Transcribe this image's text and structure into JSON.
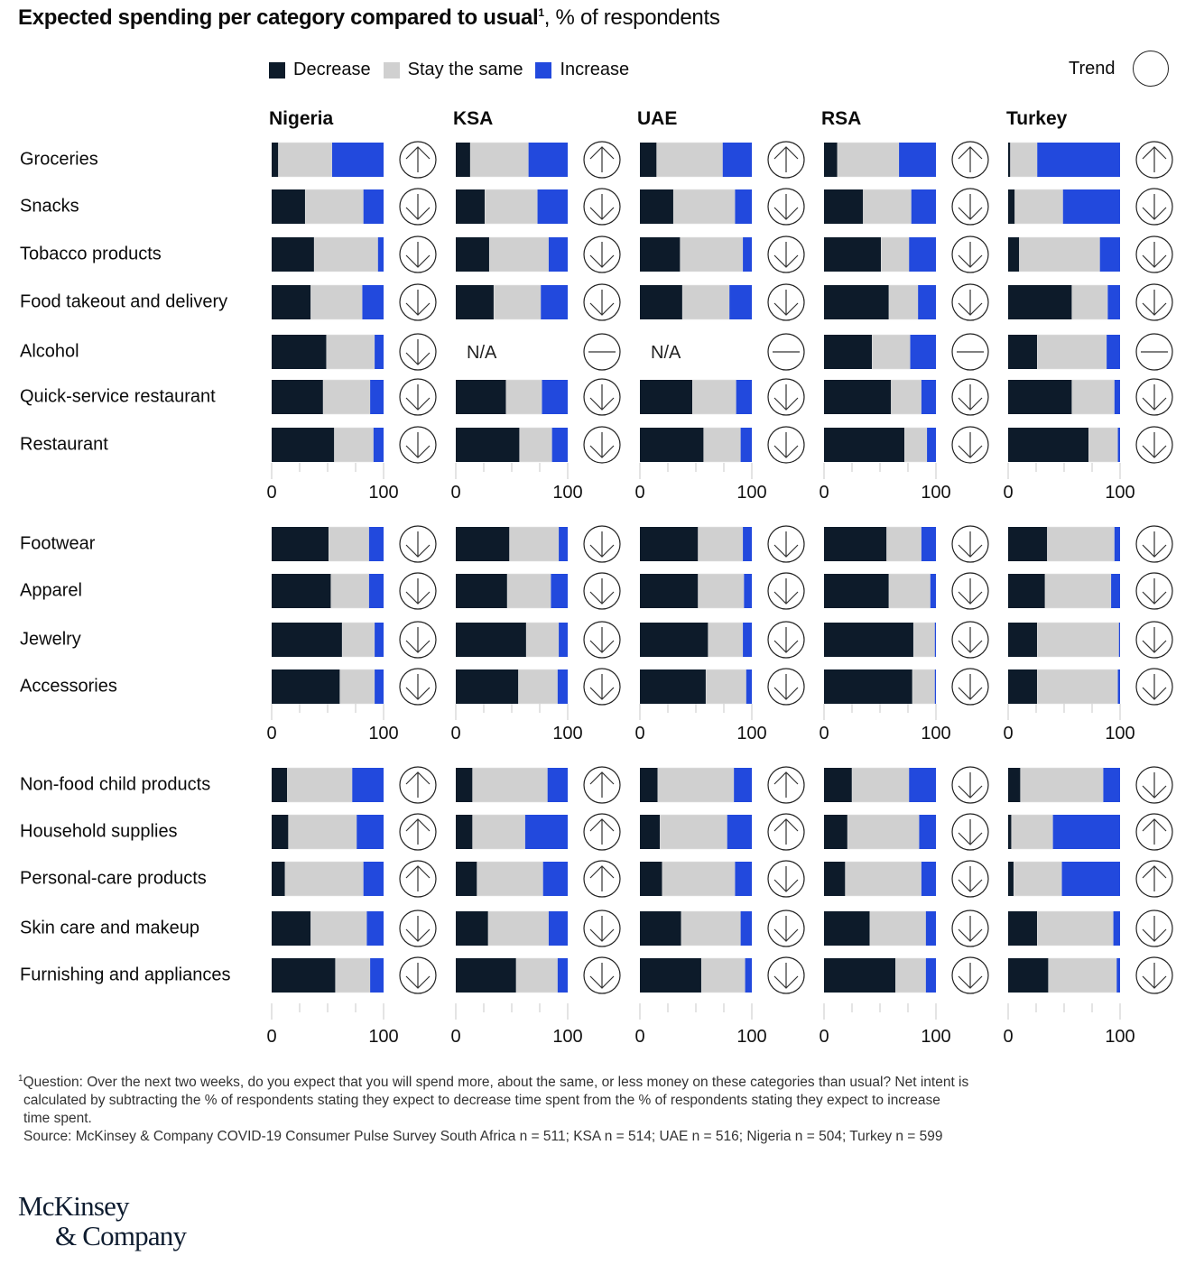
{
  "header": {
    "title_bold": "Expected spending per category compared to usual",
    "title_sup": "1",
    "title_rest": ", % of respondents"
  },
  "legend": {
    "items": [
      {
        "label": "Decrease",
        "color": "#0d1b2a"
      },
      {
        "label": "Stay the same",
        "color": "#d0d0d0"
      },
      {
        "label": "Increase",
        "color": "#2249dd"
      }
    ],
    "trend_label": "Trend"
  },
  "footnote": {
    "line1": "Question: Over the next two weeks, do you expect that you will spend more, about the same, or less money on these categories than usual? Net intent is",
    "line2": "calculated by subtracting the % of respondents stating they expect to decrease time spent from the % of respondents stating they expect to increase",
    "line3": "time spent.",
    "source": "Source: McKinsey & Company COVID-19 Consumer Pulse Survey South Africa n = 511; KSA n = 514; UAE n = 516; Nigeria n = 504; Turkey n = 599",
    "marker": "1"
  },
  "logo": {
    "line1": "McKinsey",
    "line2": "& Company"
  },
  "chart_data": {
    "type": "bar",
    "subtype": "stacked-horizontal-small-multiples",
    "title": "Expected spending per category compared to usual, % of respondents",
    "xlabel": "",
    "ylabel": "",
    "xlim": [
      0,
      100
    ],
    "x_ticks": [
      0,
      25,
      50,
      75,
      100
    ],
    "x_tick_labels": [
      "0",
      "100"
    ],
    "legend_position": "top",
    "na_label": "N/A",
    "series_names": [
      "Decrease",
      "Stay the same",
      "Increase"
    ],
    "trend_values": [
      "up",
      "down",
      "flat"
    ],
    "countries": [
      "Nigeria",
      "KSA",
      "UAE",
      "RSA",
      "Turkey"
    ],
    "groups": [
      {
        "categories": [
          "Groceries",
          "Snacks",
          "Tobacco products",
          "Food takeout and delivery",
          "Alcohol",
          "Quick-service restaurant",
          "Restaurant"
        ],
        "data": {
          "Nigeria": [
            [
              6,
              48,
              46,
              "up"
            ],
            [
              30,
              52,
              18,
              "down"
            ],
            [
              38,
              57,
              5,
              "down"
            ],
            [
              35,
              46,
              19,
              "down"
            ],
            [
              49,
              43,
              8,
              "down"
            ],
            [
              46,
              42,
              12,
              "down"
            ],
            [
              56,
              35,
              9,
              "down"
            ]
          ],
          "KSA": [
            [
              13,
              52,
              35,
              "up"
            ],
            [
              26,
              47,
              27,
              "down"
            ],
            [
              30,
              53,
              17,
              "down"
            ],
            [
              34,
              42,
              24,
              "down"
            ],
            [
              null,
              null,
              null,
              "flat"
            ],
            [
              45,
              32,
              23,
              "down"
            ],
            [
              57,
              29,
              14,
              "down"
            ]
          ],
          "UAE": [
            [
              15,
              59,
              26,
              "up"
            ],
            [
              30,
              55,
              15,
              "down"
            ],
            [
              36,
              56,
              8,
              "down"
            ],
            [
              38,
              42,
              20,
              "down"
            ],
            [
              null,
              null,
              null,
              "flat"
            ],
            [
              47,
              39,
              14,
              "down"
            ],
            [
              57,
              33,
              10,
              "down"
            ]
          ],
          "RSA": [
            [
              12,
              55,
              33,
              "up"
            ],
            [
              35,
              43,
              22,
              "down"
            ],
            [
              51,
              25,
              24,
              "down"
            ],
            [
              58,
              26,
              16,
              "down"
            ],
            [
              43,
              34,
              23,
              "flat"
            ],
            [
              60,
              27,
              13,
              "down"
            ],
            [
              72,
              20,
              8,
              "down"
            ]
          ],
          "Turkey": [
            [
              2,
              24,
              74,
              "up"
            ],
            [
              6,
              43,
              51,
              "down"
            ],
            [
              10,
              72,
              18,
              "down"
            ],
            [
              57,
              32,
              11,
              "down"
            ],
            [
              26,
              62,
              12,
              "flat"
            ],
            [
              57,
              38,
              5,
              "down"
            ],
            [
              72,
              26,
              2,
              "down"
            ]
          ]
        }
      },
      {
        "categories": [
          "Footwear",
          "Apparel",
          "Jewelry",
          "Accessories"
        ],
        "data": {
          "Nigeria": [
            [
              51,
              36,
              13,
              "down"
            ],
            [
              53,
              34,
              13,
              "down"
            ],
            [
              63,
              29,
              8,
              "down"
            ],
            [
              61,
              31,
              8,
              "down"
            ]
          ],
          "KSA": [
            [
              48,
              44,
              8,
              "down"
            ],
            [
              46,
              39,
              15,
              "down"
            ],
            [
              63,
              29,
              8,
              "down"
            ],
            [
              56,
              35,
              9,
              "down"
            ]
          ],
          "UAE": [
            [
              52,
              40,
              8,
              "down"
            ],
            [
              52,
              41,
              7,
              "down"
            ],
            [
              61,
              31,
              8,
              "down"
            ],
            [
              59,
              36,
              5,
              "down"
            ]
          ],
          "RSA": [
            [
              56,
              31,
              13,
              "down"
            ],
            [
              58,
              37,
              5,
              "down"
            ],
            [
              80,
              19,
              1,
              "down"
            ],
            [
              79,
              20,
              1,
              "down"
            ]
          ],
          "Turkey": [
            [
              35,
              60,
              5,
              "down"
            ],
            [
              33,
              59,
              8,
              "down"
            ],
            [
              26,
              73,
              1,
              "down"
            ],
            [
              26,
              72,
              2,
              "down"
            ]
          ]
        }
      },
      {
        "categories": [
          "Non-food child products",
          "Household supplies",
          "Personal-care products",
          "Skin care and makeup",
          "Furnishing and appliances"
        ],
        "data": {
          "Nigeria": [
            [
              14,
              58,
              28,
              "up"
            ],
            [
              15,
              61,
              24,
              "up"
            ],
            [
              12,
              70,
              18,
              "up"
            ],
            [
              35,
              50,
              15,
              "down"
            ],
            [
              57,
              31,
              12,
              "down"
            ]
          ],
          "KSA": [
            [
              15,
              67,
              18,
              "up"
            ],
            [
              15,
              47,
              38,
              "up"
            ],
            [
              19,
              59,
              22,
              "up"
            ],
            [
              29,
              54,
              17,
              "down"
            ],
            [
              54,
              37,
              9,
              "down"
            ]
          ],
          "UAE": [
            [
              16,
              68,
              16,
              "up"
            ],
            [
              18,
              60,
              22,
              "up"
            ],
            [
              20,
              65,
              15,
              "down"
            ],
            [
              37,
              53,
              10,
              "down"
            ],
            [
              55,
              39,
              6,
              "down"
            ]
          ],
          "RSA": [
            [
              25,
              51,
              24,
              "down"
            ],
            [
              21,
              64,
              15,
              "down"
            ],
            [
              19,
              68,
              13,
              "down"
            ],
            [
              41,
              50,
              9,
              "down"
            ],
            [
              64,
              27,
              9,
              "down"
            ]
          ],
          "Turkey": [
            [
              11,
              74,
              15,
              "down"
            ],
            [
              3,
              37,
              60,
              "up"
            ],
            [
              5,
              43,
              52,
              "up"
            ],
            [
              26,
              68,
              6,
              "down"
            ],
            [
              36,
              61,
              3,
              "down"
            ]
          ]
        }
      }
    ]
  }
}
